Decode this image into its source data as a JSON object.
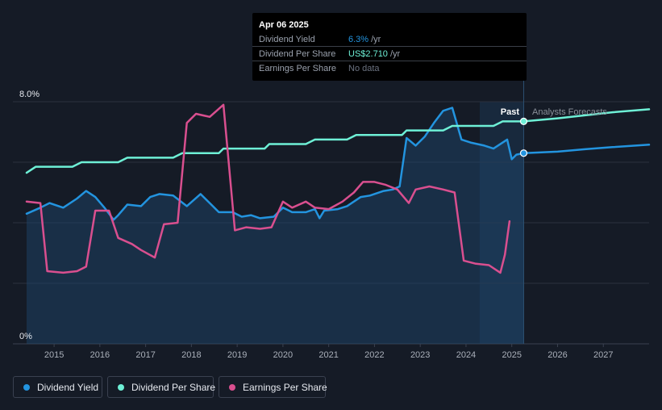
{
  "tooltip": {
    "date": "Apr 06 2025",
    "rows": [
      {
        "label": "Dividend Yield",
        "value": "6.3%",
        "unit": "/yr",
        "color": "#2394df"
      },
      {
        "label": "Dividend Per Share",
        "value": "US$2.710",
        "unit": "/yr",
        "color": "#6ef0d6"
      },
      {
        "label": "Earnings Per Share",
        "value": "No data",
        "unit": "",
        "color": "#6b7280"
      }
    ]
  },
  "regions": {
    "past": "Past",
    "forecast": "Analysts Forecasts"
  },
  "legend": [
    {
      "label": "Dividend Yield",
      "color": "#2394df"
    },
    {
      "label": "Dividend Per Share",
      "color": "#6ef0d6"
    },
    {
      "label": "Earnings Per Share",
      "color": "#d94f8f"
    }
  ],
  "chart_data": {
    "type": "line",
    "ylim": [
      0,
      8
    ],
    "y_ticks": [
      {
        "value": 8,
        "label": "8.0%"
      },
      {
        "value": 0,
        "label": "0%"
      }
    ],
    "xlim": [
      2014.1,
      2028.0
    ],
    "x_ticks": [
      2015,
      2016,
      2017,
      2018,
      2019,
      2020,
      2021,
      2022,
      2023,
      2024,
      2025,
      2026,
      2027
    ],
    "grid": true,
    "highlight_range": [
      2024.3,
      2025.26
    ],
    "divider_x": 2025.26,
    "series": [
      {
        "name": "Dividend Yield",
        "color": "#2394df",
        "area": true,
        "points": [
          [
            2014.4,
            4.3
          ],
          [
            2014.7,
            4.5
          ],
          [
            2014.9,
            4.65
          ],
          [
            2015.2,
            4.5
          ],
          [
            2015.5,
            4.8
          ],
          [
            2015.7,
            5.05
          ],
          [
            2015.9,
            4.85
          ],
          [
            2016.1,
            4.5
          ],
          [
            2016.3,
            4.1
          ],
          [
            2016.4,
            4.25
          ],
          [
            2016.6,
            4.6
          ],
          [
            2016.9,
            4.55
          ],
          [
            2017.1,
            4.85
          ],
          [
            2017.3,
            4.95
          ],
          [
            2017.6,
            4.9
          ],
          [
            2017.9,
            4.55
          ],
          [
            2018.2,
            4.95
          ],
          [
            2018.4,
            4.65
          ],
          [
            2018.6,
            4.35
          ],
          [
            2018.9,
            4.35
          ],
          [
            2019.1,
            4.2
          ],
          [
            2019.3,
            4.25
          ],
          [
            2019.5,
            4.15
          ],
          [
            2019.8,
            4.2
          ],
          [
            2020.0,
            4.5
          ],
          [
            2020.2,
            4.35
          ],
          [
            2020.5,
            4.35
          ],
          [
            2020.7,
            4.45
          ],
          [
            2020.8,
            4.15
          ],
          [
            2020.9,
            4.4
          ],
          [
            2021.2,
            4.45
          ],
          [
            2021.4,
            4.55
          ],
          [
            2021.7,
            4.85
          ],
          [
            2021.9,
            4.9
          ],
          [
            2022.2,
            5.05
          ],
          [
            2022.4,
            5.1
          ],
          [
            2022.55,
            5.2
          ],
          [
            2022.7,
            6.8
          ],
          [
            2022.9,
            6.55
          ],
          [
            2023.1,
            6.85
          ],
          [
            2023.3,
            7.3
          ],
          [
            2023.5,
            7.7
          ],
          [
            2023.7,
            7.8
          ],
          [
            2023.9,
            6.75
          ],
          [
            2024.1,
            6.65
          ],
          [
            2024.4,
            6.55
          ],
          [
            2024.6,
            6.45
          ],
          [
            2024.9,
            6.75
          ],
          [
            2025.0,
            6.1
          ],
          [
            2025.1,
            6.25
          ],
          [
            2025.26,
            6.3
          ]
        ]
      },
      {
        "name": "Dividend Yield Forecast",
        "color": "#2394df",
        "points": [
          [
            2025.26,
            6.3
          ],
          [
            2026.0,
            6.35
          ],
          [
            2026.6,
            6.43
          ],
          [
            2027.2,
            6.5
          ],
          [
            2028.0,
            6.58
          ]
        ]
      },
      {
        "name": "Dividend Per Share",
        "color": "#6ef0d6",
        "points": [
          [
            2014.4,
            5.65
          ],
          [
            2014.6,
            5.85
          ],
          [
            2015.0,
            5.85
          ],
          [
            2015.4,
            5.85
          ],
          [
            2015.6,
            6.0
          ],
          [
            2016.0,
            6.0
          ],
          [
            2016.4,
            6.0
          ],
          [
            2016.6,
            6.15
          ],
          [
            2017.0,
            6.15
          ],
          [
            2017.6,
            6.15
          ],
          [
            2017.8,
            6.3
          ],
          [
            2018.2,
            6.3
          ],
          [
            2018.6,
            6.3
          ],
          [
            2018.7,
            6.45
          ],
          [
            2019.0,
            6.45
          ],
          [
            2019.6,
            6.45
          ],
          [
            2019.7,
            6.6
          ],
          [
            2020.2,
            6.6
          ],
          [
            2020.5,
            6.6
          ],
          [
            2020.7,
            6.75
          ],
          [
            2021.0,
            6.75
          ],
          [
            2021.4,
            6.75
          ],
          [
            2021.6,
            6.9
          ],
          [
            2022.0,
            6.9
          ],
          [
            2022.6,
            6.9
          ],
          [
            2022.7,
            7.05
          ],
          [
            2023.0,
            7.05
          ],
          [
            2023.5,
            7.05
          ],
          [
            2023.7,
            7.2
          ],
          [
            2024.0,
            7.2
          ],
          [
            2024.6,
            7.2
          ],
          [
            2024.8,
            7.35
          ],
          [
            2025.26,
            7.35
          ]
        ]
      },
      {
        "name": "Dividend Per Share Forecast",
        "color": "#6ef0d6",
        "points": [
          [
            2025.26,
            7.35
          ],
          [
            2026.0,
            7.45
          ],
          [
            2026.6,
            7.55
          ],
          [
            2027.2,
            7.65
          ],
          [
            2028.0,
            7.75
          ]
        ]
      },
      {
        "name": "Earnings Per Share",
        "color": "#d94f8f",
        "points": [
          [
            2014.4,
            4.7
          ],
          [
            2014.7,
            4.65
          ],
          [
            2014.85,
            2.4
          ],
          [
            2015.2,
            2.35
          ],
          [
            2015.5,
            2.4
          ],
          [
            2015.7,
            2.55
          ],
          [
            2015.9,
            4.4
          ],
          [
            2016.2,
            4.4
          ],
          [
            2016.4,
            3.5
          ],
          [
            2016.7,
            3.3
          ],
          [
            2016.9,
            3.1
          ],
          [
            2017.2,
            2.85
          ],
          [
            2017.4,
            3.95
          ],
          [
            2017.7,
            4.0
          ],
          [
            2017.9,
            7.3
          ],
          [
            2018.1,
            7.6
          ],
          [
            2018.4,
            7.5
          ],
          [
            2018.7,
            7.9
          ],
          [
            2018.95,
            3.75
          ],
          [
            2019.2,
            3.85
          ],
          [
            2019.5,
            3.8
          ],
          [
            2019.75,
            3.85
          ],
          [
            2020.0,
            4.7
          ],
          [
            2020.2,
            4.5
          ],
          [
            2020.5,
            4.7
          ],
          [
            2020.7,
            4.5
          ],
          [
            2021.0,
            4.45
          ],
          [
            2021.3,
            4.7
          ],
          [
            2021.55,
            5.0
          ],
          [
            2021.75,
            5.35
          ],
          [
            2022.0,
            5.35
          ],
          [
            2022.25,
            5.25
          ],
          [
            2022.5,
            5.1
          ],
          [
            2022.75,
            4.65
          ],
          [
            2022.9,
            5.1
          ],
          [
            2023.2,
            5.2
          ],
          [
            2023.5,
            5.1
          ],
          [
            2023.75,
            5.0
          ],
          [
            2023.95,
            2.75
          ],
          [
            2024.2,
            2.65
          ],
          [
            2024.5,
            2.6
          ],
          [
            2024.75,
            2.35
          ],
          [
            2024.85,
            2.95
          ],
          [
            2024.95,
            4.05
          ]
        ]
      }
    ]
  }
}
